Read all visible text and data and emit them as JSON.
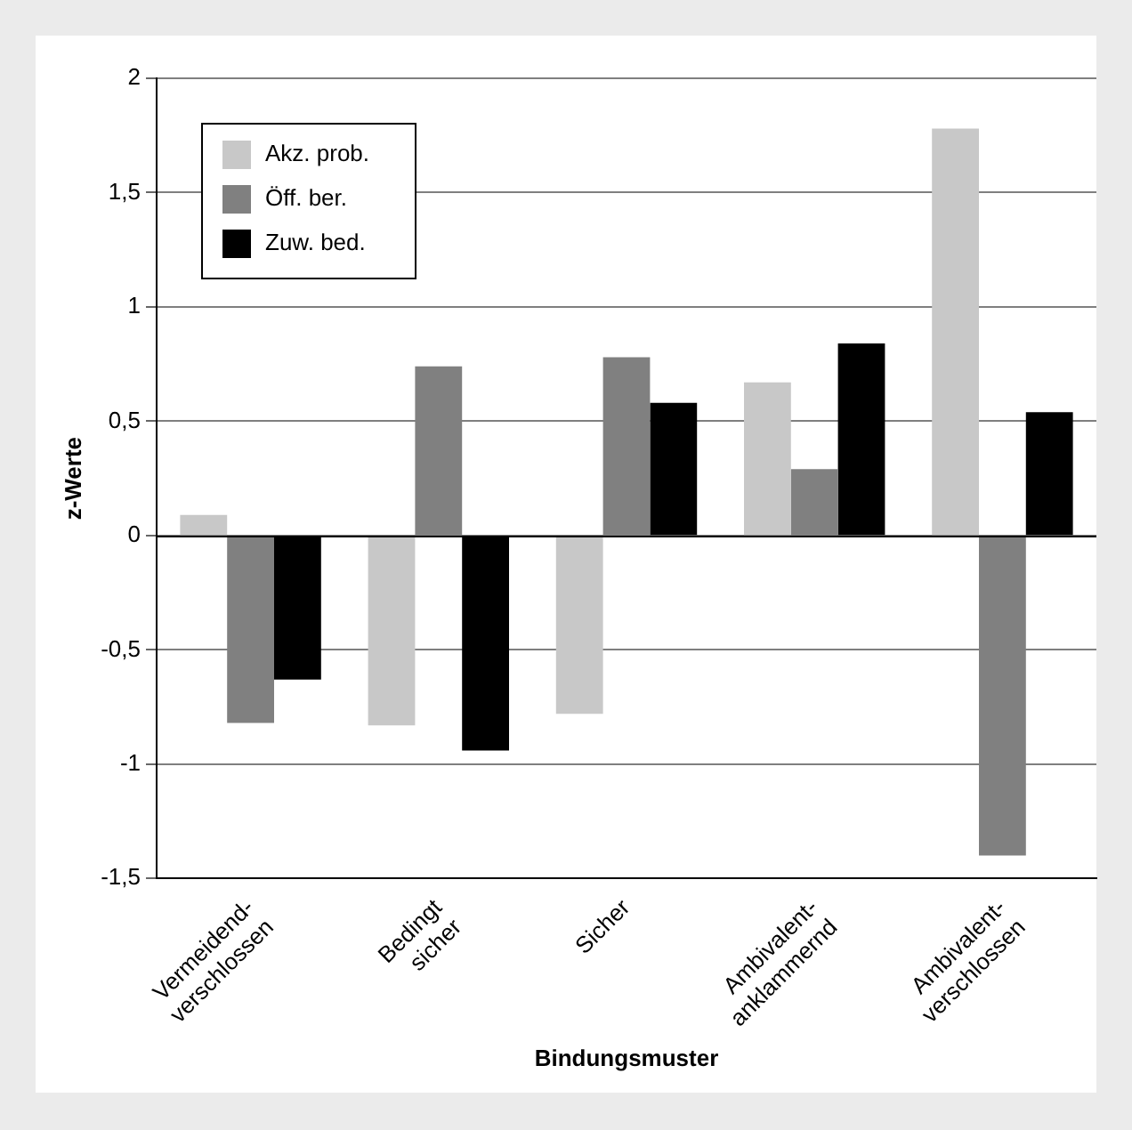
{
  "chart_data": {
    "type": "bar",
    "xlabel": "Bindungsmuster",
    "ylabel": "z-Werte",
    "categories": [
      "Vermeidend- verschlossen",
      "Bedingt sicher",
      "Sicher",
      "Ambivalent- anklammernd",
      "Ambivalent- verschlossen"
    ],
    "series": [
      {
        "name": "Akz. prob.",
        "color": "#c8c8c8",
        "values": [
          0.09,
          -0.83,
          -0.78,
          0.67,
          1.78
        ]
      },
      {
        "name": "Öff. ber.",
        "color": "#808080",
        "values": [
          -0.82,
          0.74,
          0.78,
          0.29,
          -1.4
        ]
      },
      {
        "name": "Zuw. bed.",
        "color": "#000000",
        "values": [
          -0.63,
          -0.94,
          0.58,
          0.84,
          0.54
        ]
      }
    ],
    "ylim": [
      -1.5,
      2
    ],
    "yticks": [
      {
        "value": -1.5,
        "label": "-1,5"
      },
      -1,
      {
        "value": -0.5,
        "label": "-0,5"
      },
      0,
      {
        "value": 0.5,
        "label": "0,5"
      },
      1,
      {
        "value": 1.5,
        "label": "1,5"
      },
      2
    ],
    "grid": "y",
    "legend": "top left"
  }
}
